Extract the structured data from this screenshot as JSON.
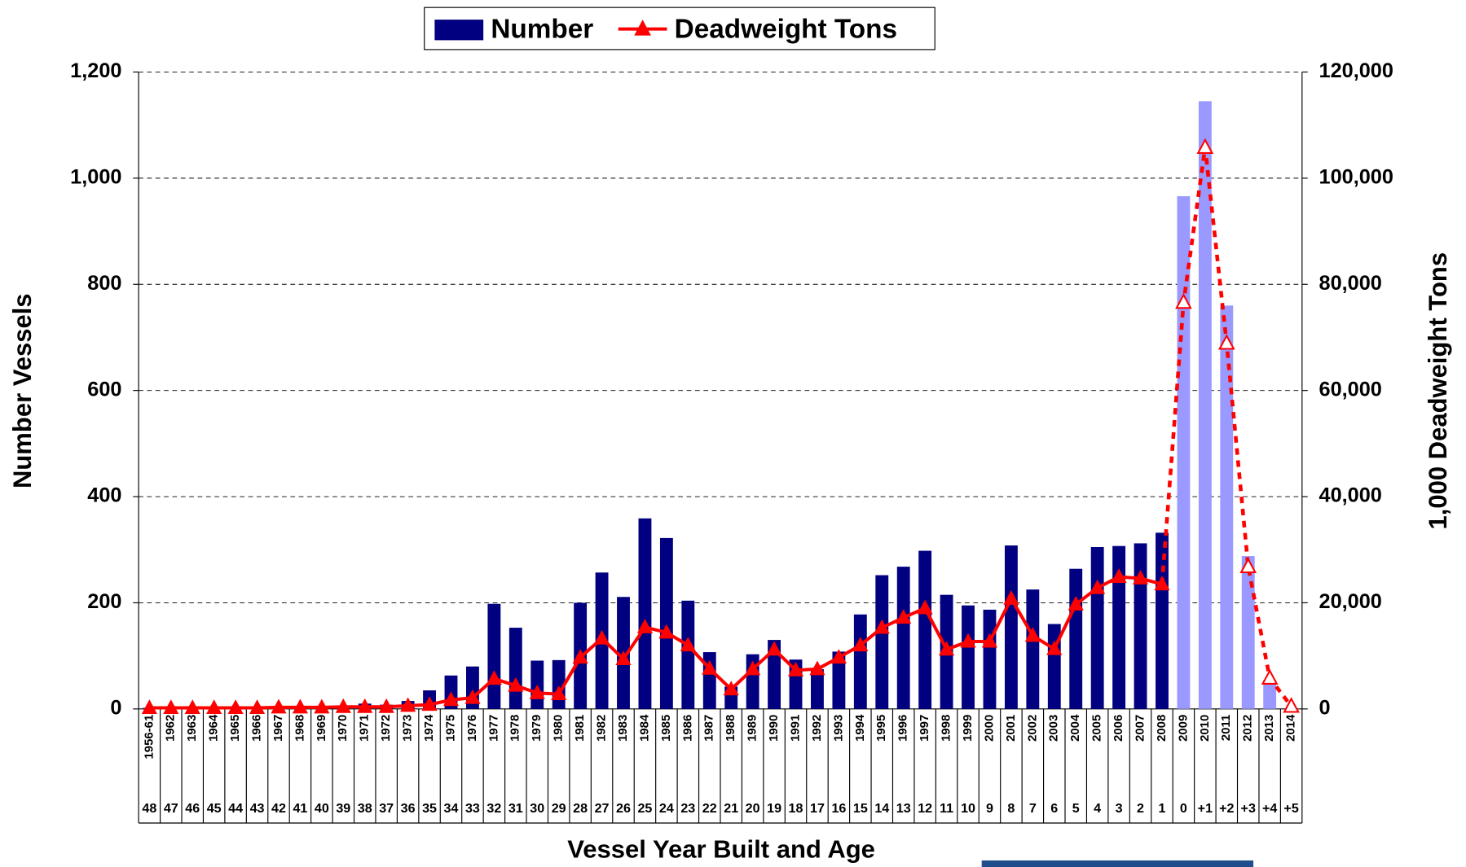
{
  "chart_data": {
    "type": "bar_line",
    "x_label": "Vessel Year Built and Age",
    "y_label": "Number Vessels",
    "y2_label": "1,000 Deadweight Tons",
    "categories": [
      "1956-61",
      "1962",
      "1963",
      "1964",
      "1965",
      "1966",
      "1967",
      "1968",
      "1969",
      "1970",
      "1971",
      "1972",
      "1973",
      "1974",
      "1975",
      "1976",
      "1977",
      "1978",
      "1979",
      "1980",
      "1981",
      "1982",
      "1983",
      "1984",
      "1985",
      "1986",
      "1987",
      "1988",
      "1989",
      "1990",
      "1991",
      "1992",
      "1993",
      "1994",
      "1995",
      "1996",
      "1997",
      "1998",
      "1999",
      "2000",
      "2001",
      "2002",
      "2003",
      "2004",
      "2005",
      "2006",
      "2007",
      "2008",
      "2009",
      "2010",
      "2011",
      "2012",
      "2013",
      "2014"
    ],
    "ages": [
      "48",
      "47",
      "46",
      "45",
      "44",
      "43",
      "42",
      "41",
      "40",
      "39",
      "38",
      "37",
      "36",
      "35",
      "34",
      "33",
      "32",
      "31",
      "30",
      "29",
      "28",
      "27",
      "26",
      "25",
      "24",
      "23",
      "22",
      "21",
      "20",
      "19",
      "18",
      "17",
      "16",
      "15",
      "14",
      "13",
      "12",
      "11",
      "10",
      "9",
      "8",
      "7",
      "6",
      "5",
      "4",
      "3",
      "2",
      "1",
      "0",
      "+1",
      "+2",
      "+3",
      "+4",
      "+5"
    ],
    "series": [
      {
        "name": "Number",
        "kind": "bar",
        "color": "#000080",
        "bar_colors": [
          "#000080",
          "#000080",
          "#000080",
          "#000080",
          "#000080",
          "#000080",
          "#000080",
          "#000080",
          "#000080",
          "#000080",
          "#000080",
          "#000080",
          "#000080",
          "#000080",
          "#000080",
          "#000080",
          "#000080",
          "#000080",
          "#000080",
          "#000080",
          "#000080",
          "#000080",
          "#000080",
          "#000080",
          "#000080",
          "#000080",
          "#000080",
          "#000080",
          "#000080",
          "#000080",
          "#000080",
          "#000080",
          "#000080",
          "#000080",
          "#000080",
          "#000080",
          "#000080",
          "#000080",
          "#000080",
          "#000080",
          "#000080",
          "#000080",
          "#000080",
          "#000080",
          "#000080",
          "#000080",
          "#000080",
          "#000080",
          "#9999ff",
          "#9999ff",
          "#9999ff",
          "#9999ff",
          "#9999ff",
          "#9999ff"
        ],
        "values": [
          2,
          2,
          2,
          2,
          3,
          3,
          3,
          4,
          5,
          6,
          10,
          8,
          15,
          35,
          63,
          80,
          198,
          153,
          91,
          92,
          200,
          257,
          211,
          359,
          322,
          204,
          107,
          42,
          103,
          130,
          93,
          75,
          108,
          178,
          252,
          268,
          298,
          215,
          195,
          187,
          308,
          225,
          160,
          264,
          305,
          307,
          312,
          332,
          966,
          1145,
          760,
          288,
          55,
          2
        ]
      },
      {
        "name": "Deadweight Tons",
        "kind": "line",
        "axis": "y2",
        "color": "#ff0000",
        "point_styles": [
          "filled",
          "filled",
          "filled",
          "filled",
          "filled",
          "filled",
          "filled",
          "filled",
          "filled",
          "filled",
          "filled",
          "filled",
          "filled",
          "filled",
          "filled",
          "filled",
          "filled",
          "filled",
          "filled",
          "filled",
          "filled",
          "filled",
          "filled",
          "filled",
          "filled",
          "filled",
          "filled",
          "filled",
          "filled",
          "filled",
          "filled",
          "filled",
          "filled",
          "filled",
          "filled",
          "filled",
          "filled",
          "filled",
          "filled",
          "filled",
          "filled",
          "filled",
          "filled",
          "filled",
          "filled",
          "filled",
          "filled",
          "filled",
          "hollow",
          "hollow",
          "hollow",
          "hollow",
          "hollow",
          "hollow"
        ],
        "values": [
          200,
          200,
          200,
          200,
          200,
          200,
          300,
          300,
          300,
          400,
          400,
          400,
          600,
          800,
          1700,
          2100,
          5700,
          4400,
          3000,
          2800,
          9700,
          13300,
          9400,
          15400,
          14400,
          12000,
          7600,
          3700,
          7500,
          11200,
          7300,
          7500,
          9700,
          12000,
          15300,
          17200,
          19000,
          11200,
          12700,
          12700,
          20800,
          13800,
          11300,
          19700,
          22800,
          24900,
          24600,
          23500,
          76600,
          105800,
          68900,
          26800,
          5800,
          500
        ]
      }
    ],
    "ylim": [
      0,
      1200
    ],
    "yticks": [
      0,
      {
        "value": 200,
        "label": "200"
      },
      400,
      600,
      800,
      {
        "value": 1000,
        "label": "1,000"
      },
      {
        "value": 1200,
        "label": "1,200"
      }
    ],
    "y2lim": [
      0,
      120000
    ],
    "y2ticks": [
      0,
      {
        "value": 20000,
        "label": "20,000"
      },
      {
        "value": 40000,
        "label": "40,000"
      },
      {
        "value": 60000,
        "label": "60,000"
      },
      {
        "value": 80000,
        "label": "80,000"
      },
      {
        "value": 100000,
        "label": "100,000"
      },
      {
        "value": 120000,
        "label": "120,000"
      }
    ],
    "grid": true
  }
}
